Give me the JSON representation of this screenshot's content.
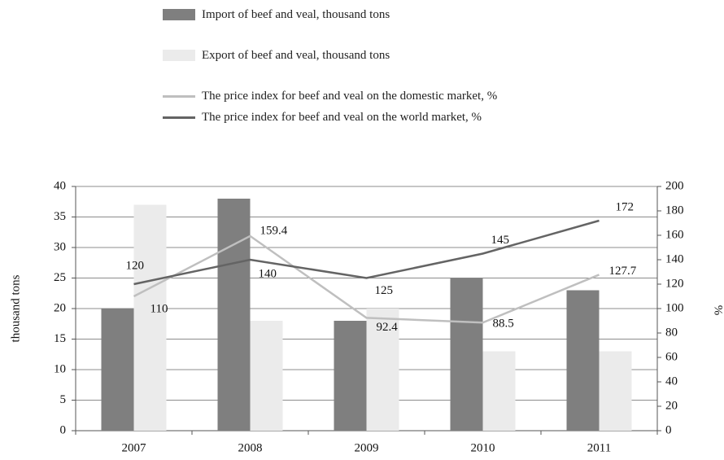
{
  "chart_data": {
    "type": "bar-line",
    "categories": [
      "2007",
      "2008",
      "2009",
      "2010",
      "2011"
    ],
    "series": [
      {
        "name": "Import of beef and veal, thousand tons",
        "color": "#7f7f7f",
        "kind": "bar",
        "values": [
          20,
          38,
          18,
          25,
          23
        ]
      },
      {
        "name": "Export of beef and veal, thousand tons",
        "color": "#ebebeb",
        "kind": "bar",
        "values": [
          37,
          18,
          20,
          13,
          13
        ]
      },
      {
        "name": "The price index for beef and veal on the domestic market, %",
        "color": "#bfbfbf",
        "kind": "line",
        "axis": "y2",
        "values": [
          110,
          159.4,
          92.4,
          88.5,
          127.7
        ]
      },
      {
        "name": "The price index for beef and veal on the world market, %",
        "color": "#646464",
        "kind": "line",
        "axis": "y2",
        "values": [
          120,
          140,
          125,
          145,
          172
        ]
      }
    ],
    "ylabel": "thousand tons",
    "y2label": "%",
    "ylim": [
      0,
      40
    ],
    "yticks": [
      0,
      5,
      10,
      15,
      20,
      25,
      30,
      35,
      40
    ],
    "y2lim": [
      0,
      200
    ],
    "y2ticks": [
      0,
      20,
      40,
      60,
      80,
      100,
      120,
      140,
      160,
      180,
      200
    ],
    "grid": true,
    "legend": "top"
  }
}
